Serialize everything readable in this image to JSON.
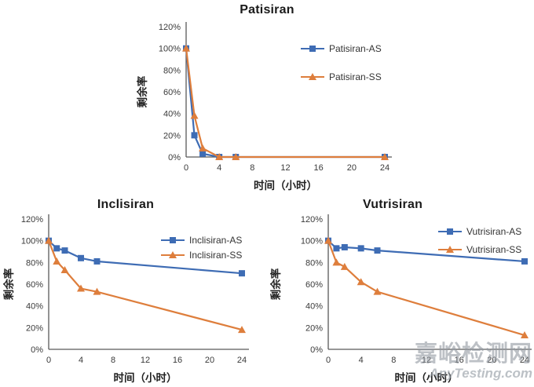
{
  "page": {
    "background": "#ffffff"
  },
  "watermark": {
    "line1": "嘉峪检测网",
    "line2": "AnyTesting.com",
    "color": "#98a0a8"
  },
  "colors": {
    "series_blue": "#3E6CB4",
    "series_orange": "#DE7E3C",
    "axis": "#595959",
    "tick_text": "#3a3a3a",
    "title_text": "#1a1a1a"
  },
  "chart_data": [
    {
      "type": "line",
      "title": "Patisiran",
      "xlabel": "时间（小时）",
      "ylabel": "剩余率",
      "xlim": [
        0,
        24
      ],
      "ylim": [
        0,
        120
      ],
      "x_ticks": [
        0,
        4,
        8,
        12,
        16,
        20,
        24
      ],
      "y_ticks_percent": [
        0,
        20,
        40,
        60,
        80,
        100,
        120
      ],
      "grid": false,
      "legend_position": "inside-upper-right",
      "x": [
        0,
        1,
        2,
        4,
        6,
        24
      ],
      "series": [
        {
          "name": "Patisiran-AS",
          "color": "#3E6CB4",
          "marker": "square",
          "values": [
            100,
            20,
            3,
            0,
            0,
            0
          ]
        },
        {
          "name": "Patisiran-SS",
          "color": "#DE7E3C",
          "marker": "triangle",
          "values": [
            100,
            38,
            8,
            0,
            0,
            0
          ]
        }
      ]
    },
    {
      "type": "line",
      "title": "Inclisiran",
      "xlabel": "时间（小时）",
      "ylabel": "剩余率",
      "xlim": [
        0,
        24
      ],
      "ylim": [
        0,
        120
      ],
      "x_ticks": [
        0,
        4,
        8,
        12,
        16,
        20,
        24
      ],
      "y_ticks_percent": [
        0,
        20,
        40,
        60,
        80,
        100,
        120
      ],
      "grid": false,
      "legend_position": "inside-upper-right",
      "x": [
        0,
        1,
        2,
        4,
        6,
        24
      ],
      "series": [
        {
          "name": "Inclisiran-AS",
          "color": "#3E6CB4",
          "marker": "square",
          "values": [
            100,
            93,
            91,
            84,
            81,
            70
          ]
        },
        {
          "name": "Inclisiran-SS",
          "color": "#DE7E3C",
          "marker": "triangle",
          "values": [
            100,
            81,
            73,
            56,
            53,
            18
          ]
        }
      ]
    },
    {
      "type": "line",
      "title": "Vutrisiran",
      "xlabel": "时间（小时）",
      "ylabel": "剩余率",
      "xlim": [
        0,
        24
      ],
      "ylim": [
        0,
        120
      ],
      "x_ticks": [
        0,
        4,
        8,
        12,
        16,
        20,
        24
      ],
      "y_ticks_percent": [
        0,
        20,
        40,
        60,
        80,
        100,
        120
      ],
      "grid": false,
      "legend_position": "inside-upper-right",
      "x": [
        0,
        1,
        2,
        4,
        6,
        24
      ],
      "series": [
        {
          "name": "Vutrisiran-AS",
          "color": "#3E6CB4",
          "marker": "square",
          "values": [
            100,
            93,
            94,
            93,
            91,
            81
          ]
        },
        {
          "name": "Vutrisiran-SS",
          "color": "#DE7E3C",
          "marker": "triangle",
          "values": [
            100,
            80,
            76,
            62,
            53,
            13
          ]
        }
      ]
    }
  ]
}
